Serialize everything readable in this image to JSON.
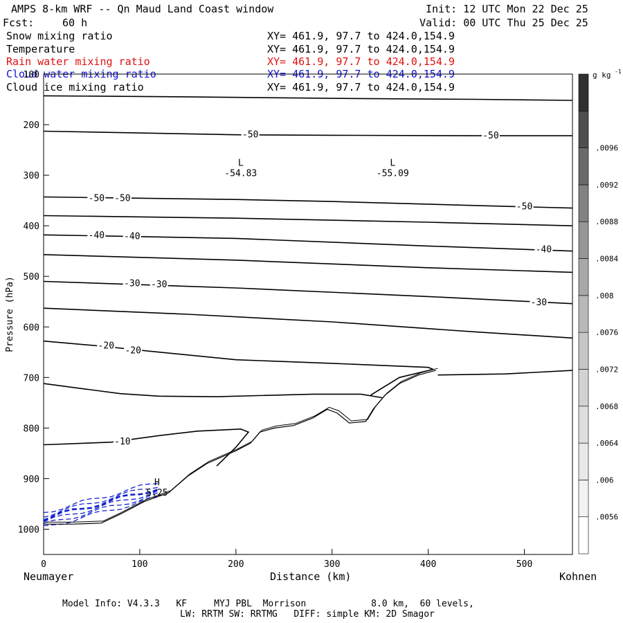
{
  "header": {
    "title": "AMPS 8-km WRF -- Qn Maud Land Coast window",
    "fcst_label": "Fcst:",
    "fcst_value": "60 h",
    "init": "Init: 12 UTC Mon 22 Dec 25",
    "valid": "Valid: 00 UTC Thu 25 Dec 25"
  },
  "fields": [
    {
      "name": "Snow mixing ratio",
      "xy": "XY= 461.9, 97.7 to 424.0,154.9",
      "color": "#000000"
    },
    {
      "name": "Temperature",
      "xy": "XY= 461.9, 97.7 to 424.0,154.9",
      "color": "#000000"
    },
    {
      "name": "Rain water mixing ratio",
      "xy": "XY= 461.9, 97.7 to 424.0,154.9",
      "color": "#e01010"
    },
    {
      "name": "Cloud water mixing ratio",
      "xy": "XY= 461.9, 97.7 to 424.0,154.9",
      "color": "#1010d0"
    },
    {
      "name": "Cloud ice mixing ratio",
      "xy": "XY= 461.9, 97.7 to 424.0,154.9",
      "color": "#000000"
    }
  ],
  "footer": {
    "line1": "Model Info: V4.3.3   KF     MYJ PBL  Morrison            8.0 km,  60 levels,",
    "line2": "LW: RRTM SW: RRTMG   DIFF: simple KM: 2D Smagor"
  },
  "chart_data": {
    "type": "contour cross-section",
    "xlabel": "Distance (km)",
    "ylabel": "Pressure (hPa)",
    "xlim": [
      0,
      550
    ],
    "ylim": [
      1050,
      100
    ],
    "x_ticks": [
      "0",
      "100",
      "200",
      "300",
      "400",
      "500"
    ],
    "y_ticks": [
      "100",
      "200",
      "300",
      "400",
      "500",
      "600",
      "700",
      "800",
      "900",
      "1000"
    ],
    "x_start_label": "Neumayer",
    "x_end_label": "Kohnen",
    "colorbar": {
      "unit": "g kg",
      "unit_exp": "-1",
      "levels": [
        ".0056",
        ".006",
        ".0064",
        ".0068",
        ".0072",
        ".0076",
        ".008",
        ".0084",
        ".0088",
        ".0092",
        ".0096"
      ],
      "colors": [
        "#ffffff",
        "#f2f2f2",
        "#e8e8e8",
        "#dedede",
        "#d2d2d2",
        "#c6c6c6",
        "#b8b8b8",
        "#a8a8a8",
        "#969696",
        "#828282",
        "#6a6a6a",
        "#4e4e4e",
        "#303030"
      ]
    },
    "temperature_contours": [
      {
        "pts": [
          [
            0,
            143
          ],
          [
            150,
            145
          ],
          [
            300,
            148
          ],
          [
            450,
            150
          ],
          [
            550,
            152
          ]
        ]
      },
      {
        "pts": [
          [
            0,
            213
          ],
          [
            200,
            220
          ],
          [
            300,
            221
          ],
          [
            450,
            222
          ],
          [
            550,
            222
          ]
        ],
        "labels": [
          {
            "x": 215,
            "p": 220,
            "text": "-50"
          },
          {
            "x": 465,
            "p": 222,
            "text": "-50"
          }
        ]
      },
      {
        "pts": [
          [
            0,
            343
          ],
          [
            200,
            348
          ],
          [
            300,
            352
          ],
          [
            450,
            360
          ],
          [
            550,
            365
          ]
        ],
        "labels": [
          {
            "x": 55,
            "p": 346,
            "text": "-50"
          },
          {
            "x": 82,
            "p": 346,
            "text": "-50"
          },
          {
            "x": 500,
            "p": 362,
            "text": "-50"
          }
        ]
      },
      {
        "pts": [
          [
            0,
            380
          ],
          [
            200,
            385
          ],
          [
            400,
            393
          ],
          [
            550,
            400
          ]
        ]
      },
      {
        "pts": [
          [
            0,
            418
          ],
          [
            200,
            425
          ],
          [
            400,
            440
          ],
          [
            550,
            450
          ]
        ],
        "labels": [
          {
            "x": 55,
            "p": 419,
            "text": "-40"
          },
          {
            "x": 92,
            "p": 421,
            "text": "-40"
          },
          {
            "x": 520,
            "p": 447,
            "text": "-40"
          }
        ]
      },
      {
        "pts": [
          [
            0,
            457
          ],
          [
            200,
            468
          ],
          [
            400,
            483
          ],
          [
            550,
            492
          ]
        ]
      },
      {
        "pts": [
          [
            0,
            510
          ],
          [
            200,
            523
          ],
          [
            400,
            540
          ],
          [
            550,
            554
          ]
        ],
        "labels": [
          {
            "x": 92,
            "p": 514,
            "text": "-30"
          },
          {
            "x": 120,
            "p": 516,
            "text": "-30"
          },
          {
            "x": 515,
            "p": 552,
            "text": "-30"
          }
        ]
      },
      {
        "pts": [
          [
            0,
            563
          ],
          [
            150,
            575
          ],
          [
            300,
            590
          ],
          [
            450,
            610
          ],
          [
            550,
            622
          ]
        ]
      },
      {
        "pts": [
          [
            0,
            628
          ],
          [
            60,
            638
          ],
          [
            110,
            648
          ],
          [
            200,
            665
          ],
          [
            300,
            672
          ],
          [
            350,
            676
          ],
          [
            400,
            680
          ],
          [
            405,
            684
          ],
          [
            370,
            700
          ],
          [
            340,
            735
          ]
        ],
        "labels": [
          {
            "x": 65,
            "p": 637,
            "text": "-20"
          },
          {
            "x": 93,
            "p": 647,
            "text": "-20"
          }
        ]
      },
      {
        "pts": [
          [
            0,
            712
          ],
          [
            40,
            722
          ],
          [
            80,
            732
          ],
          [
            120,
            737
          ],
          [
            180,
            738
          ],
          [
            280,
            733
          ],
          [
            330,
            733
          ],
          [
            352,
            740
          ]
        ]
      },
      {
        "pts": [
          [
            410,
            695
          ],
          [
            480,
            693
          ],
          [
            550,
            686
          ]
        ]
      },
      {
        "pts": [
          [
            0,
            833
          ],
          [
            70,
            828
          ],
          [
            120,
            815
          ],
          [
            160,
            806
          ],
          [
            205,
            802
          ],
          [
            213,
            808
          ],
          [
            200,
            838
          ],
          [
            180,
            875
          ]
        ],
        "labels": [
          {
            "x": 82,
            "p": 827,
            "text": "-10"
          }
        ]
      }
    ],
    "terrain_line": {
      "pts": [
        [
          0,
          990
        ],
        [
          30,
          990
        ],
        [
          60,
          988
        ],
        [
          80,
          970
        ],
        [
          105,
          945
        ],
        [
          130,
          928
        ],
        [
          150,
          895
        ],
        [
          170,
          870
        ],
        [
          200,
          845
        ],
        [
          215,
          830
        ],
        [
          225,
          808
        ],
        [
          240,
          800
        ],
        [
          260,
          795
        ],
        [
          280,
          780
        ],
        [
          295,
          763
        ],
        [
          305,
          770
        ],
        [
          318,
          790
        ],
        [
          335,
          787
        ],
        [
          343,
          762
        ],
        [
          355,
          735
        ],
        [
          370,
          712
        ],
        [
          390,
          695
        ],
        [
          408,
          686
        ]
      ]
    },
    "cloud_water_region_x_km": [
      0,
      120
    ],
    "extrema": [
      {
        "type": "L",
        "value": "-54.83",
        "x": 205,
        "p": 295
      },
      {
        "type": "L",
        "value": "-55.09",
        "x": 363,
        "p": 295
      },
      {
        "type": "H",
        "value": "5.25",
        "x": 118,
        "p": 927
      }
    ]
  }
}
